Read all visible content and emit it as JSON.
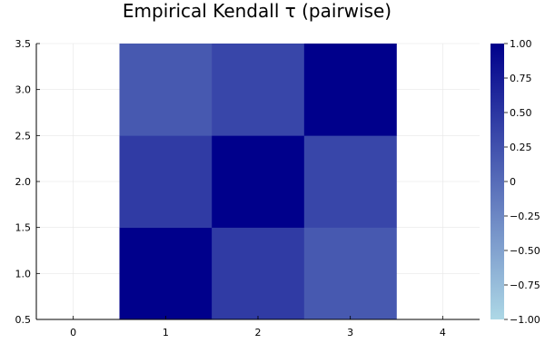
{
  "chart_data": {
    "type": "heatmap",
    "title": "Empirical Kendall τ (pairwise)",
    "xlabel": "",
    "ylabel": "",
    "x_categories": [
      1,
      2,
      3
    ],
    "y_categories": [
      1,
      2,
      3
    ],
    "values": [
      [
        1.0,
        0.45,
        0.18
      ],
      [
        0.45,
        1.0,
        0.35
      ],
      [
        0.18,
        0.35,
        1.0
      ]
    ],
    "xlim": [
      -0.4,
      4.4
    ],
    "ylim": [
      0.5,
      3.5
    ],
    "x_ticks": [
      "0",
      "1",
      "2",
      "3",
      "4"
    ],
    "y_ticks": [
      "0.5",
      "1.0",
      "1.5",
      "2.0",
      "2.5",
      "3.0",
      "3.5"
    ],
    "x_tick_values": [
      0,
      1,
      2,
      3,
      4
    ],
    "y_tick_values": [
      0.5,
      1.0,
      1.5,
      2.0,
      2.5,
      3.0,
      3.5
    ],
    "grid": true,
    "colorbar": {
      "min": -1.0,
      "max": 1.0,
      "ticks": [
        "1.00",
        "0.75",
        "0.50",
        "0.25",
        "0",
        "−0.25",
        "−0.50",
        "−0.75",
        "−1.00"
      ],
      "tick_values": [
        1.0,
        0.75,
        0.5,
        0.25,
        0,
        -0.25,
        -0.5,
        -0.75,
        -1.0
      ],
      "color_low": "#add8e6",
      "color_high": "#00008b"
    }
  }
}
